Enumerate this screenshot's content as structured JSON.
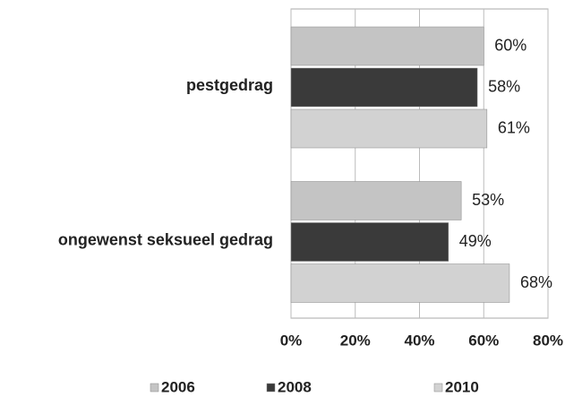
{
  "chart_data": {
    "type": "hbar",
    "categories": [
      "pestgedrag",
      "ongewenst seksueel gedrag"
    ],
    "series": [
      {
        "name": "2006",
        "color": "#c4c4c4",
        "values": [
          60,
          53
        ],
        "value_labels": [
          "60%",
          "53%"
        ]
      },
      {
        "name": "2008",
        "color": "#3a3a3a",
        "values": [
          58,
          49
        ],
        "value_labels": [
          "58%",
          "49%"
        ]
      },
      {
        "name": "2010",
        "color": "#d2d2d2",
        "values": [
          61,
          68
        ],
        "value_labels": [
          "61%",
          "68%"
        ]
      }
    ],
    "xlim": [
      0,
      80
    ],
    "xticks": [
      {
        "value": 0,
        "label": "0%"
      },
      {
        "value": 20,
        "label": "20%"
      },
      {
        "value": 40,
        "label": "40%"
      },
      {
        "value": 60,
        "label": "60%"
      },
      {
        "value": 80,
        "label": "80%"
      }
    ],
    "grid": true
  }
}
